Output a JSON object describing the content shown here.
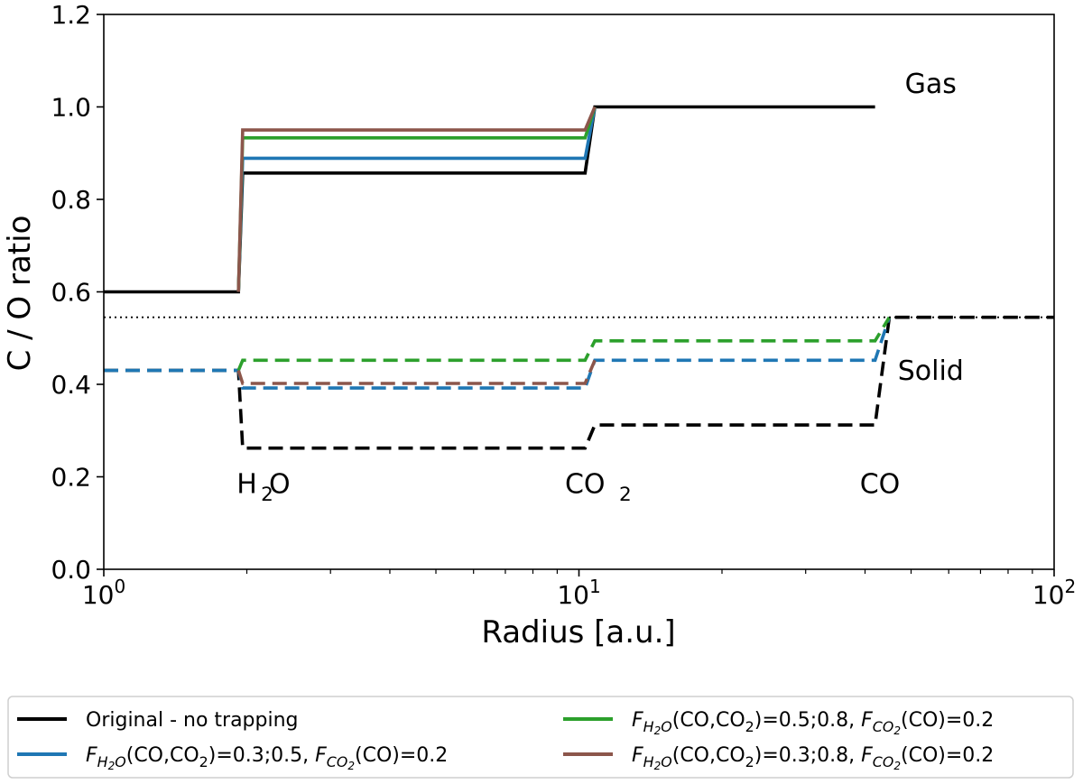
{
  "chart_data": {
    "type": "line",
    "xlabel": "Radius [a.u.]",
    "ylabel": "C / O ratio",
    "xscale": "log",
    "xlim": [
      1,
      100
    ],
    "ylim": [
      0,
      1.2
    ],
    "grid": false,
    "legend_position": "below",
    "x_ticks": [
      {
        "value": 1,
        "base": "10",
        "exp": "0"
      },
      {
        "value": 10,
        "base": "10",
        "exp": "1"
      },
      {
        "value": 100,
        "base": "10",
        "exp": "2"
      }
    ],
    "y_ticks": [
      "0.0",
      "0.2",
      "0.4",
      "0.6",
      "0.8",
      "1.0",
      "1.2"
    ],
    "annotations": [
      {
        "text": "Gas",
        "x": 55,
        "y": 1.03
      },
      {
        "text": "Solid",
        "x": 55,
        "y": 0.41
      },
      {
        "parts": [
          [
            "H",
            ""
          ],
          [
            "2",
            "sub"
          ],
          [
            "O",
            ""
          ]
        ],
        "x": 2.0,
        "y": 0.165
      },
      {
        "parts": [
          [
            "CO",
            ""
          ],
          [
            "2",
            "sub"
          ]
        ],
        "x": 10.3,
        "y": 0.165
      },
      {
        "parts": [
          [
            "CO",
            ""
          ]
        ],
        "x": 43,
        "y": 0.165
      }
    ],
    "reference_line": {
      "y": 0.545,
      "style": "dotted"
    },
    "series": [
      {
        "name": "Original - no trapping",
        "color": "#000000",
        "style": "solid",
        "points": [
          [
            1,
            0.6
          ],
          [
            1.92,
            0.6
          ],
          [
            1.96,
            0.857
          ],
          [
            10.3,
            0.857
          ],
          [
            10.8,
            1.0
          ],
          [
            42,
            1.0
          ]
        ]
      },
      {
        "name": "F_H2O(CO,CO2)=0.3;0.5, F_CO2(CO)=0.2",
        "color": "#1f77b4",
        "style": "solid",
        "points": [
          [
            1.92,
            0.6
          ],
          [
            1.96,
            0.889
          ],
          [
            10.3,
            0.889
          ],
          [
            10.8,
            1.0
          ]
        ]
      },
      {
        "name": "F_H2O(CO,CO2)=0.5;0.8, F_CO2(CO)=0.2",
        "color": "#2ca02c",
        "style": "solid",
        "points": [
          [
            1.92,
            0.6
          ],
          [
            1.96,
            0.933
          ],
          [
            10.3,
            0.933
          ],
          [
            10.8,
            1.0
          ]
        ]
      },
      {
        "name": "F_H2O(CO,CO2)=0.3;0.8, F_CO2(CO)=0.2",
        "color": "#8c564b",
        "style": "solid",
        "points": [
          [
            1.92,
            0.6
          ],
          [
            1.96,
            0.95
          ],
          [
            10.3,
            0.95
          ],
          [
            10.8,
            1.0
          ]
        ]
      },
      {
        "name": "Original - no trapping (solid)",
        "color": "#000000",
        "style": "dashed",
        "points": [
          [
            1,
            0.43
          ],
          [
            1.92,
            0.43
          ],
          [
            1.96,
            0.262
          ],
          [
            10.3,
            0.262
          ],
          [
            10.8,
            0.312
          ],
          [
            42,
            0.312
          ],
          [
            45,
            0.545
          ],
          [
            100,
            0.545
          ]
        ]
      },
      {
        "name": "F_H2O(CO,CO2)=0.3;0.5 (solid)",
        "color": "#1f77b4",
        "style": "dashed",
        "points": [
          [
            1,
            0.43
          ],
          [
            1.92,
            0.43
          ],
          [
            1.96,
            0.392
          ],
          [
            10.3,
            0.392
          ],
          [
            10.8,
            0.452
          ],
          [
            42,
            0.452
          ],
          [
            45,
            0.545
          ]
        ]
      },
      {
        "name": "F_H2O(CO,CO2)=0.5;0.8 (solid)",
        "color": "#2ca02c",
        "style": "dashed",
        "points": [
          [
            1.92,
            0.43
          ],
          [
            1.96,
            0.452
          ],
          [
            10.3,
            0.452
          ],
          [
            10.8,
            0.494
          ],
          [
            42,
            0.494
          ],
          [
            45,
            0.545
          ]
        ]
      },
      {
        "name": "F_H2O(CO,CO2)=0.3;0.8 (solid)",
        "color": "#8c564b",
        "style": "dashed",
        "points": [
          [
            1.92,
            0.43
          ],
          [
            1.96,
            0.402
          ],
          [
            10.3,
            0.402
          ],
          [
            10.8,
            0.452
          ]
        ]
      }
    ]
  },
  "legend": [
    {
      "color": "#000000",
      "parts": [
        [
          "Original - no trapping",
          ""
        ]
      ]
    },
    {
      "color": "#1f77b4",
      "parts": [
        [
          "F",
          "it"
        ],
        [
          "H",
          "itsub"
        ],
        [
          "2",
          "itsubsub"
        ],
        [
          "O",
          "itsub"
        ],
        [
          "(CO,CO",
          ""
        ],
        [
          "2",
          "sub"
        ],
        [
          ")=0.3;0.5, ",
          ""
        ],
        [
          "F",
          "it"
        ],
        [
          "CO",
          "itsub"
        ],
        [
          "2",
          "itsubsub"
        ],
        [
          "(CO)=0.2",
          ""
        ]
      ]
    },
    {
      "color": "#2ca02c",
      "parts": [
        [
          "F",
          "it"
        ],
        [
          "H",
          "itsub"
        ],
        [
          "2",
          "itsubsub"
        ],
        [
          "O",
          "itsub"
        ],
        [
          "(CO,CO",
          ""
        ],
        [
          "2",
          "sub"
        ],
        [
          ")=0.5;0.8, ",
          ""
        ],
        [
          "F",
          "it"
        ],
        [
          "CO",
          "itsub"
        ],
        [
          "2",
          "itsubsub"
        ],
        [
          "(CO)=0.2",
          ""
        ]
      ]
    },
    {
      "color": "#8c564b",
      "parts": [
        [
          "F",
          "it"
        ],
        [
          "H",
          "itsub"
        ],
        [
          "2",
          "itsubsub"
        ],
        [
          "O",
          "itsub"
        ],
        [
          "(CO,CO",
          ""
        ],
        [
          "2",
          "sub"
        ],
        [
          ")=0.3;0.8, ",
          ""
        ],
        [
          "F",
          "it"
        ],
        [
          "CO",
          "itsub"
        ],
        [
          "2",
          "itsubsub"
        ],
        [
          "(CO)=0.2",
          ""
        ]
      ]
    }
  ]
}
